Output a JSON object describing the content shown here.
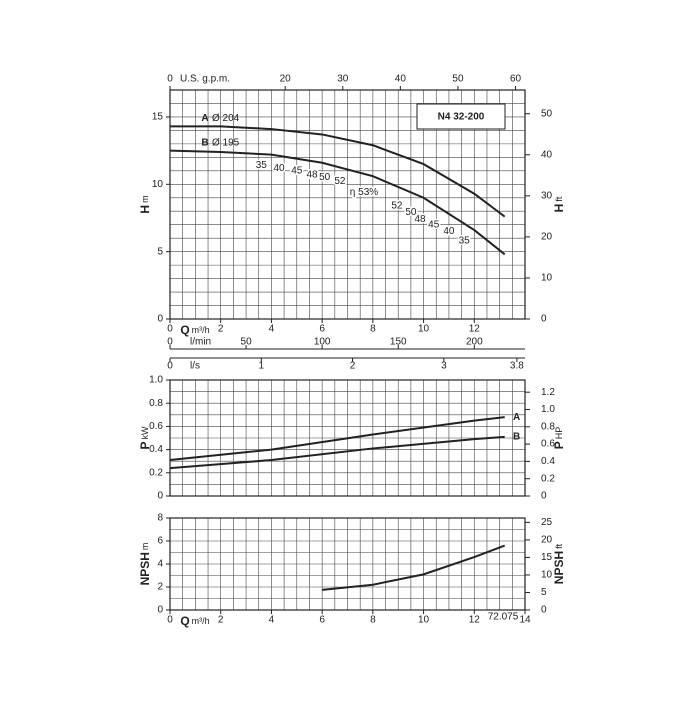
{
  "chart_data": [
    {
      "type": "line",
      "title": "N4 32-200",
      "xlabel": "Q",
      "xunit": "m³/h",
      "ylabel": "H",
      "yunit": "m",
      "y2label": "H",
      "y2unit": "ft",
      "xlim": [
        0,
        14
      ],
      "xticks": [
        0,
        2,
        4,
        6,
        8,
        10,
        12
      ],
      "ylim": [
        0,
        17
      ],
      "yticks": [
        0,
        5,
        10,
        15
      ],
      "y2lim": [
        0,
        55.78
      ],
      "y2ticks": [
        0,
        10,
        20,
        30,
        40,
        50
      ],
      "xgrid_step": 0.5,
      "ygrid_step": 1,
      "grid": true,
      "top_axis": {
        "label": "U.S. g.p.m.",
        "lim": [
          0,
          61.64
        ],
        "ticks": [
          0,
          20,
          30,
          40,
          50,
          60
        ]
      },
      "bottom_axes": [
        {
          "label": "l/min",
          "lim": [
            0,
            233.3
          ],
          "ticks": [
            0,
            50,
            100,
            150,
            200
          ]
        },
        {
          "label": "l/s",
          "lim": [
            0,
            3.889
          ],
          "ticks": [
            0,
            1,
            2,
            3,
            3.8
          ]
        }
      ],
      "series": [
        {
          "name": "A",
          "diameter": "Ø 204",
          "color": "#222222",
          "x": [
            0,
            2,
            4,
            6,
            8,
            10,
            12,
            13.2
          ],
          "values": [
            14.3,
            14.3,
            14.1,
            13.7,
            12.9,
            11.5,
            9.3,
            7.6
          ]
        },
        {
          "name": "B",
          "diameter": "Ø 195",
          "color": "#222222",
          "x": [
            0,
            2,
            4,
            6,
            8,
            10,
            12,
            13.2
          ],
          "values": [
            12.5,
            12.4,
            12.2,
            11.6,
            10.6,
            9.0,
            6.6,
            4.8
          ]
        }
      ],
      "efficiency_labels": [
        {
          "label": "35",
          "q": 3.6,
          "h": 11.4
        },
        {
          "label": "40",
          "q": 4.3,
          "h": 11.2
        },
        {
          "label": "45",
          "q": 5.0,
          "h": 11.0
        },
        {
          "label": "48",
          "q": 5.6,
          "h": 10.7
        },
        {
          "label": "50",
          "q": 6.1,
          "h": 10.5
        },
        {
          "label": "52",
          "q": 6.7,
          "h": 10.2
        },
        {
          "label": "η 53%",
          "q": 7.65,
          "h": 9.4
        },
        {
          "label": "52",
          "q": 8.95,
          "h": 8.4
        },
        {
          "label": "50",
          "q": 9.5,
          "h": 7.9
        },
        {
          "label": "48",
          "q": 9.86,
          "h": 7.4
        },
        {
          "label": "45",
          "q": 10.4,
          "h": 7.0
        },
        {
          "label": "40",
          "q": 11.0,
          "h": 6.5
        },
        {
          "label": "35",
          "q": 11.6,
          "h": 5.8
        }
      ]
    },
    {
      "type": "line",
      "ylabel": "P",
      "yunit": "kW",
      "y2label": "P",
      "y2unit": "HP",
      "xlim": [
        0,
        14
      ],
      "ylim": [
        0,
        1
      ],
      "yticks": [
        0,
        0.2,
        0.4,
        0.6,
        0.8,
        {
          "value": 1,
          "label": "1.0"
        }
      ],
      "y2lim": [
        0,
        1.341
      ],
      "y2ticks": [
        0,
        0.2,
        0.4,
        0.6,
        0.8,
        {
          "value": 1,
          "label": "1.0"
        },
        1.2
      ],
      "xgrid_step": 0.5,
      "ygrid_step": 0.1,
      "grid": true,
      "series": [
        {
          "name": "A",
          "color": "#222222",
          "x": [
            0,
            4,
            8,
            12,
            13.2
          ],
          "values": [
            0.31,
            0.4,
            0.53,
            0.65,
            0.68
          ]
        },
        {
          "name": "B",
          "color": "#222222",
          "x": [
            0,
            4,
            8,
            12,
            13.2
          ],
          "values": [
            0.24,
            0.31,
            0.41,
            0.49,
            0.51
          ]
        }
      ]
    },
    {
      "type": "line",
      "xlabel": "Q",
      "xunit": "m³/h",
      "ylabel": "NPSH",
      "yunit": "m",
      "y2label": "NPSH",
      "y2unit": "ft",
      "xlim": [
        0,
        14
      ],
      "xticks": [
        0,
        2,
        4,
        6,
        8,
        10,
        12,
        14
      ],
      "ylim": [
        0,
        8
      ],
      "yticks": [
        0,
        2,
        4,
        6,
        8
      ],
      "y2lim": [
        0,
        26.25
      ],
      "y2ticks": [
        0,
        5,
        10,
        15,
        20,
        25
      ],
      "xgrid_step": 0.5,
      "ygrid_step": 1,
      "grid": true,
      "note": "72.075",
      "series": [
        {
          "name": "NPSH",
          "color": "#222222",
          "x": [
            6,
            8,
            10,
            12,
            13.2
          ],
          "values": [
            1.75,
            2.2,
            3.1,
            4.6,
            5.6
          ]
        }
      ]
    }
  ]
}
